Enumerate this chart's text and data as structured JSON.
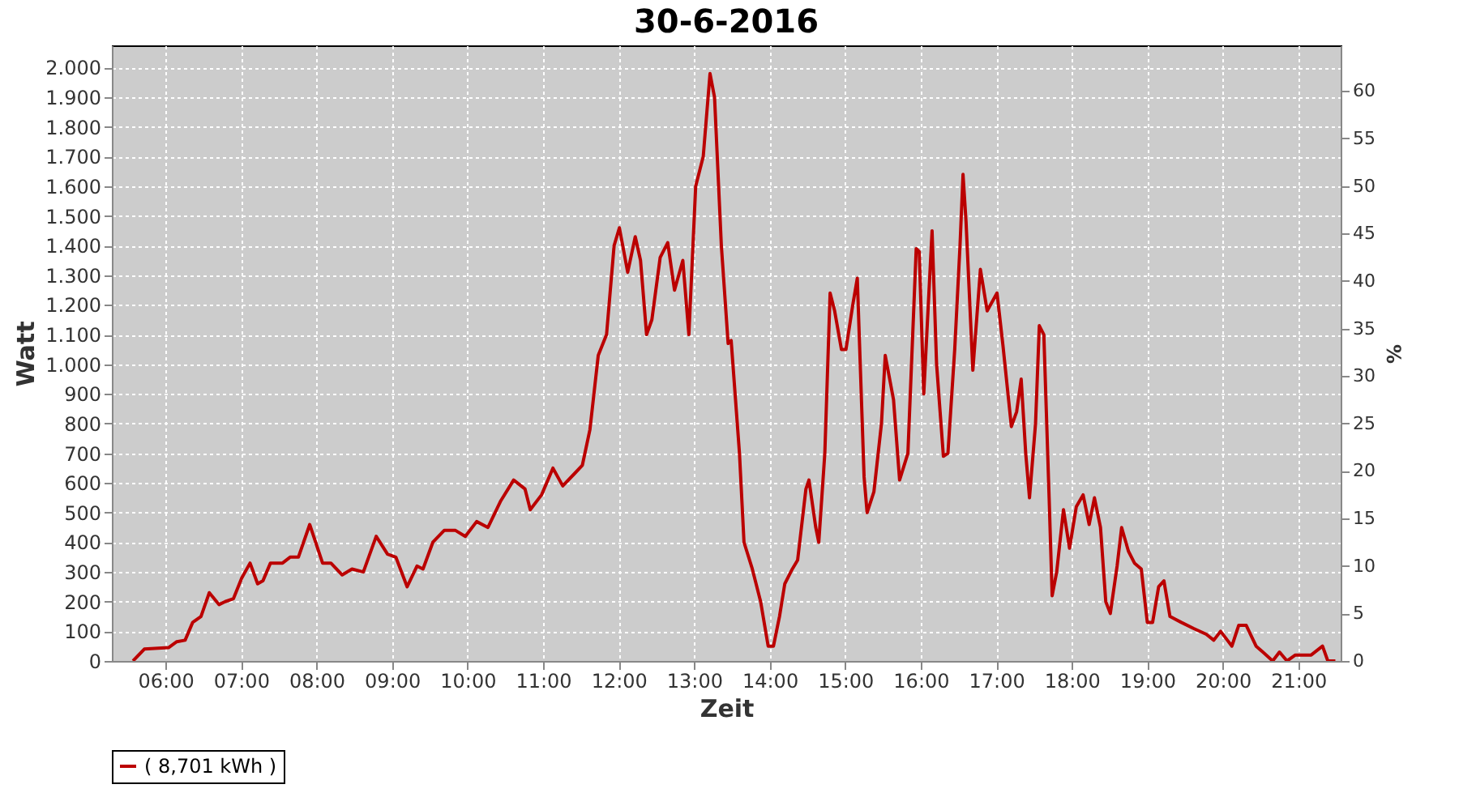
{
  "chart_data": {
    "type": "line",
    "title": "30-6-2016",
    "xlabel": "Zeit",
    "ylabel": "Watt",
    "y2label": "%",
    "xlim": [
      5.29,
      21.56
    ],
    "xticks": [
      {
        "value": 6,
        "label": "06:00"
      },
      {
        "value": 7,
        "label": "07:00"
      },
      {
        "value": 8,
        "label": "08:00"
      },
      {
        "value": 9,
        "label": "09:00"
      },
      {
        "value": 10,
        "label": "10:00"
      },
      {
        "value": 11,
        "label": "11:00"
      },
      {
        "value": 12,
        "label": "12:00"
      },
      {
        "value": 13,
        "label": "13:00"
      },
      {
        "value": 14,
        "label": "14:00"
      },
      {
        "value": 15,
        "label": "15:00"
      },
      {
        "value": 16,
        "label": "16:00"
      },
      {
        "value": 17,
        "label": "17:00"
      },
      {
        "value": 18,
        "label": "18:00"
      },
      {
        "value": 19,
        "label": "19:00"
      },
      {
        "value": 20,
        "label": "20:00"
      },
      {
        "value": 21,
        "label": "21:00"
      }
    ],
    "ylim": [
      0,
      2075
    ],
    "yticks": [
      0,
      100,
      200,
      300,
      400,
      500,
      600,
      700,
      800,
      900,
      {
        "value": 1000,
        "label": "1.000"
      },
      {
        "value": 1100,
        "label": "1.100"
      },
      {
        "value": 1200,
        "label": "1.200"
      },
      {
        "value": 1300,
        "label": "1.300"
      },
      {
        "value": 1400,
        "label": "1.400"
      },
      {
        "value": 1500,
        "label": "1.500"
      },
      {
        "value": 1600,
        "label": "1.600"
      },
      {
        "value": 1700,
        "label": "1.700"
      },
      {
        "value": 1800,
        "label": "1.800"
      },
      {
        "value": 1900,
        "label": "1.900"
      },
      {
        "value": 2000,
        "label": "2.000"
      }
    ],
    "y2lim": [
      0,
      64.8
    ],
    "y2ticks": [
      0,
      5,
      10,
      15,
      20,
      25,
      30,
      35,
      40,
      45,
      50,
      55,
      60
    ],
    "grid": true,
    "legend": "bottom",
    "marker": "none",
    "line_style": "solid",
    "series": [
      {
        "name": "( 8,701 kWh )",
        "color": "#bb0000",
        "x": [
          5.57,
          5.72,
          6.04,
          6.15,
          6.26,
          6.36,
          6.47,
          6.58,
          6.71,
          6.79,
          6.9,
          7.01,
          7.12,
          7.22,
          7.29,
          7.39,
          7.55,
          7.65,
          7.76,
          7.91,
          8.08,
          8.19,
          8.34,
          8.47,
          8.62,
          8.79,
          8.94,
          9.05,
          9.2,
          9.33,
          9.41,
          9.54,
          9.69,
          9.84,
          9.97,
          10.12,
          10.27,
          10.44,
          10.61,
          10.76,
          10.83,
          10.98,
          11.13,
          11.26,
          11.41,
          11.52,
          11.62,
          11.73,
          11.84,
          11.94,
          12.01,
          12.12,
          12.22,
          12.29,
          12.37,
          12.44,
          12.55,
          12.65,
          12.74,
          12.85,
          12.93,
          13.02,
          13.12,
          13.21,
          13.27,
          13.36,
          13.45,
          13.49,
          13.6,
          13.66,
          13.77,
          13.88,
          13.98,
          14.05,
          14.13,
          14.2,
          14.3,
          14.37,
          14.48,
          14.52,
          14.61,
          14.65,
          14.73,
          14.8,
          14.86,
          14.95,
          15.01,
          15.1,
          15.16,
          15.25,
          15.29,
          15.38,
          15.48,
          15.53,
          15.64,
          15.72,
          15.83,
          15.94,
          15.98,
          16.04,
          16.15,
          16.21,
          16.3,
          16.36,
          16.45,
          16.52,
          16.56,
          16.6,
          16.69,
          16.79,
          16.88,
          17.01,
          17.09,
          17.2,
          17.27,
          17.33,
          17.39,
          17.44,
          17.52,
          17.57,
          17.63,
          17.7,
          17.74,
          17.8,
          17.89,
          17.97,
          18.06,
          18.15,
          18.23,
          18.3,
          18.38,
          18.45,
          18.51,
          18.6,
          18.66,
          18.75,
          18.83,
          18.92,
          19.0,
          19.07,
          19.15,
          19.22,
          19.3,
          19.45,
          19.61,
          19.78,
          19.88,
          19.97,
          20.06,
          20.12,
          20.21,
          20.31,
          20.44,
          20.53,
          20.66,
          20.75,
          20.85,
          20.96,
          21.17,
          21.32,
          21.39,
          21.49
        ],
        "values": [
          0,
          40,
          45,
          65,
          70,
          130,
          150,
          230,
          190,
          200,
          210,
          280,
          330,
          260,
          270,
          330,
          330,
          350,
          350,
          460,
          330,
          330,
          290,
          310,
          300,
          420,
          360,
          350,
          250,
          320,
          310,
          400,
          440,
          440,
          420,
          470,
          450,
          540,
          610,
          580,
          510,
          560,
          650,
          590,
          630,
          660,
          780,
          1030,
          1100,
          1400,
          1460,
          1310,
          1430,
          1350,
          1100,
          1150,
          1360,
          1410,
          1250,
          1350,
          1100,
          1600,
          1700,
          1980,
          1900,
          1400,
          1070,
          1080,
          700,
          400,
          310,
          200,
          50,
          50,
          150,
          260,
          310,
          340,
          580,
          610,
          450,
          400,
          700,
          1240,
          1180,
          1050,
          1050,
          1200,
          1290,
          620,
          500,
          570,
          800,
          1030,
          880,
          610,
          700,
          1390,
          1380,
          900,
          1450,
          1000,
          690,
          700,
          1050,
          1400,
          1640,
          1480,
          980,
          1320,
          1180,
          1240,
          1060,
          790,
          840,
          950,
          700,
          550,
          800,
          1130,
          1100,
          550,
          220,
          300,
          510,
          380,
          520,
          560,
          460,
          550,
          450,
          200,
          160,
          320,
          450,
          370,
          330,
          310,
          130,
          130,
          250,
          270,
          150,
          130,
          110,
          90,
          70,
          100,
          70,
          50,
          120,
          120,
          50,
          30,
          0,
          30,
          0,
          20,
          20,
          50,
          0,
          0
        ]
      }
    ]
  }
}
